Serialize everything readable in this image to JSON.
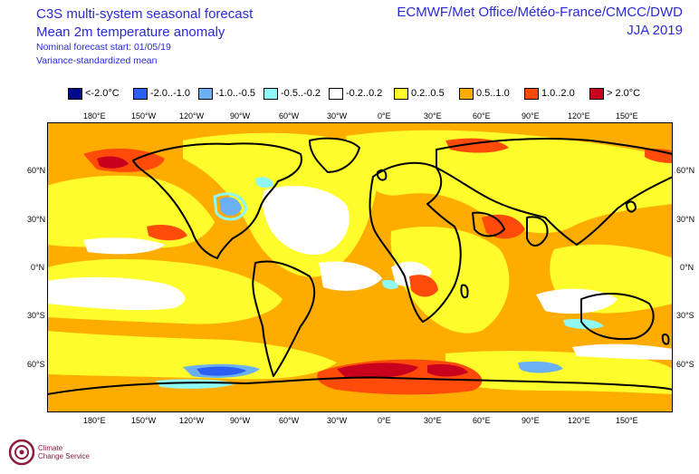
{
  "header": {
    "title_line1": "C3S multi-system seasonal forecast",
    "title_line2": "Mean 2m temperature anomaly",
    "subtitle_line1": "Nominal forecast start: 01/05/19",
    "subtitle_line2": "Variance-standardized mean",
    "producers": "ECMWF/Met Office/Météo-France/CMCC/DWD",
    "season": "JJA 2019"
  },
  "legend": [
    {
      "label": "<-2.0°C",
      "color": "#000a8c"
    },
    {
      "label": "-2.0..-1.0",
      "color": "#2a5ff2"
    },
    {
      "label": "-1.0..-0.5",
      "color": "#6bb0f2"
    },
    {
      "label": "-0.5..-0.2",
      "color": "#8ff7f7"
    },
    {
      "label": "-0.2..0.2",
      "color": "#ffffff"
    },
    {
      "label": "0.2..0.5",
      "color": "#fffc2b"
    },
    {
      "label": "0.5..1.0",
      "color": "#ffac00"
    },
    {
      "label": "1.0..2.0",
      "color": "#ff4b0a"
    },
    {
      "label": "> 2.0°C",
      "color": "#c8001e"
    }
  ],
  "axes": {
    "longitudes": [
      "180°E",
      "150°W",
      "120°W",
      "90°W",
      "60°W",
      "30°W",
      "0°E",
      "30°E",
      "60°E",
      "90°E",
      "120°E",
      "150°E"
    ],
    "latitudes": [
      "60°N",
      "30°N",
      "0°N",
      "30°S",
      "60°S"
    ]
  },
  "logo": {
    "line1": "Climate",
    "line2": "Change Service"
  }
}
